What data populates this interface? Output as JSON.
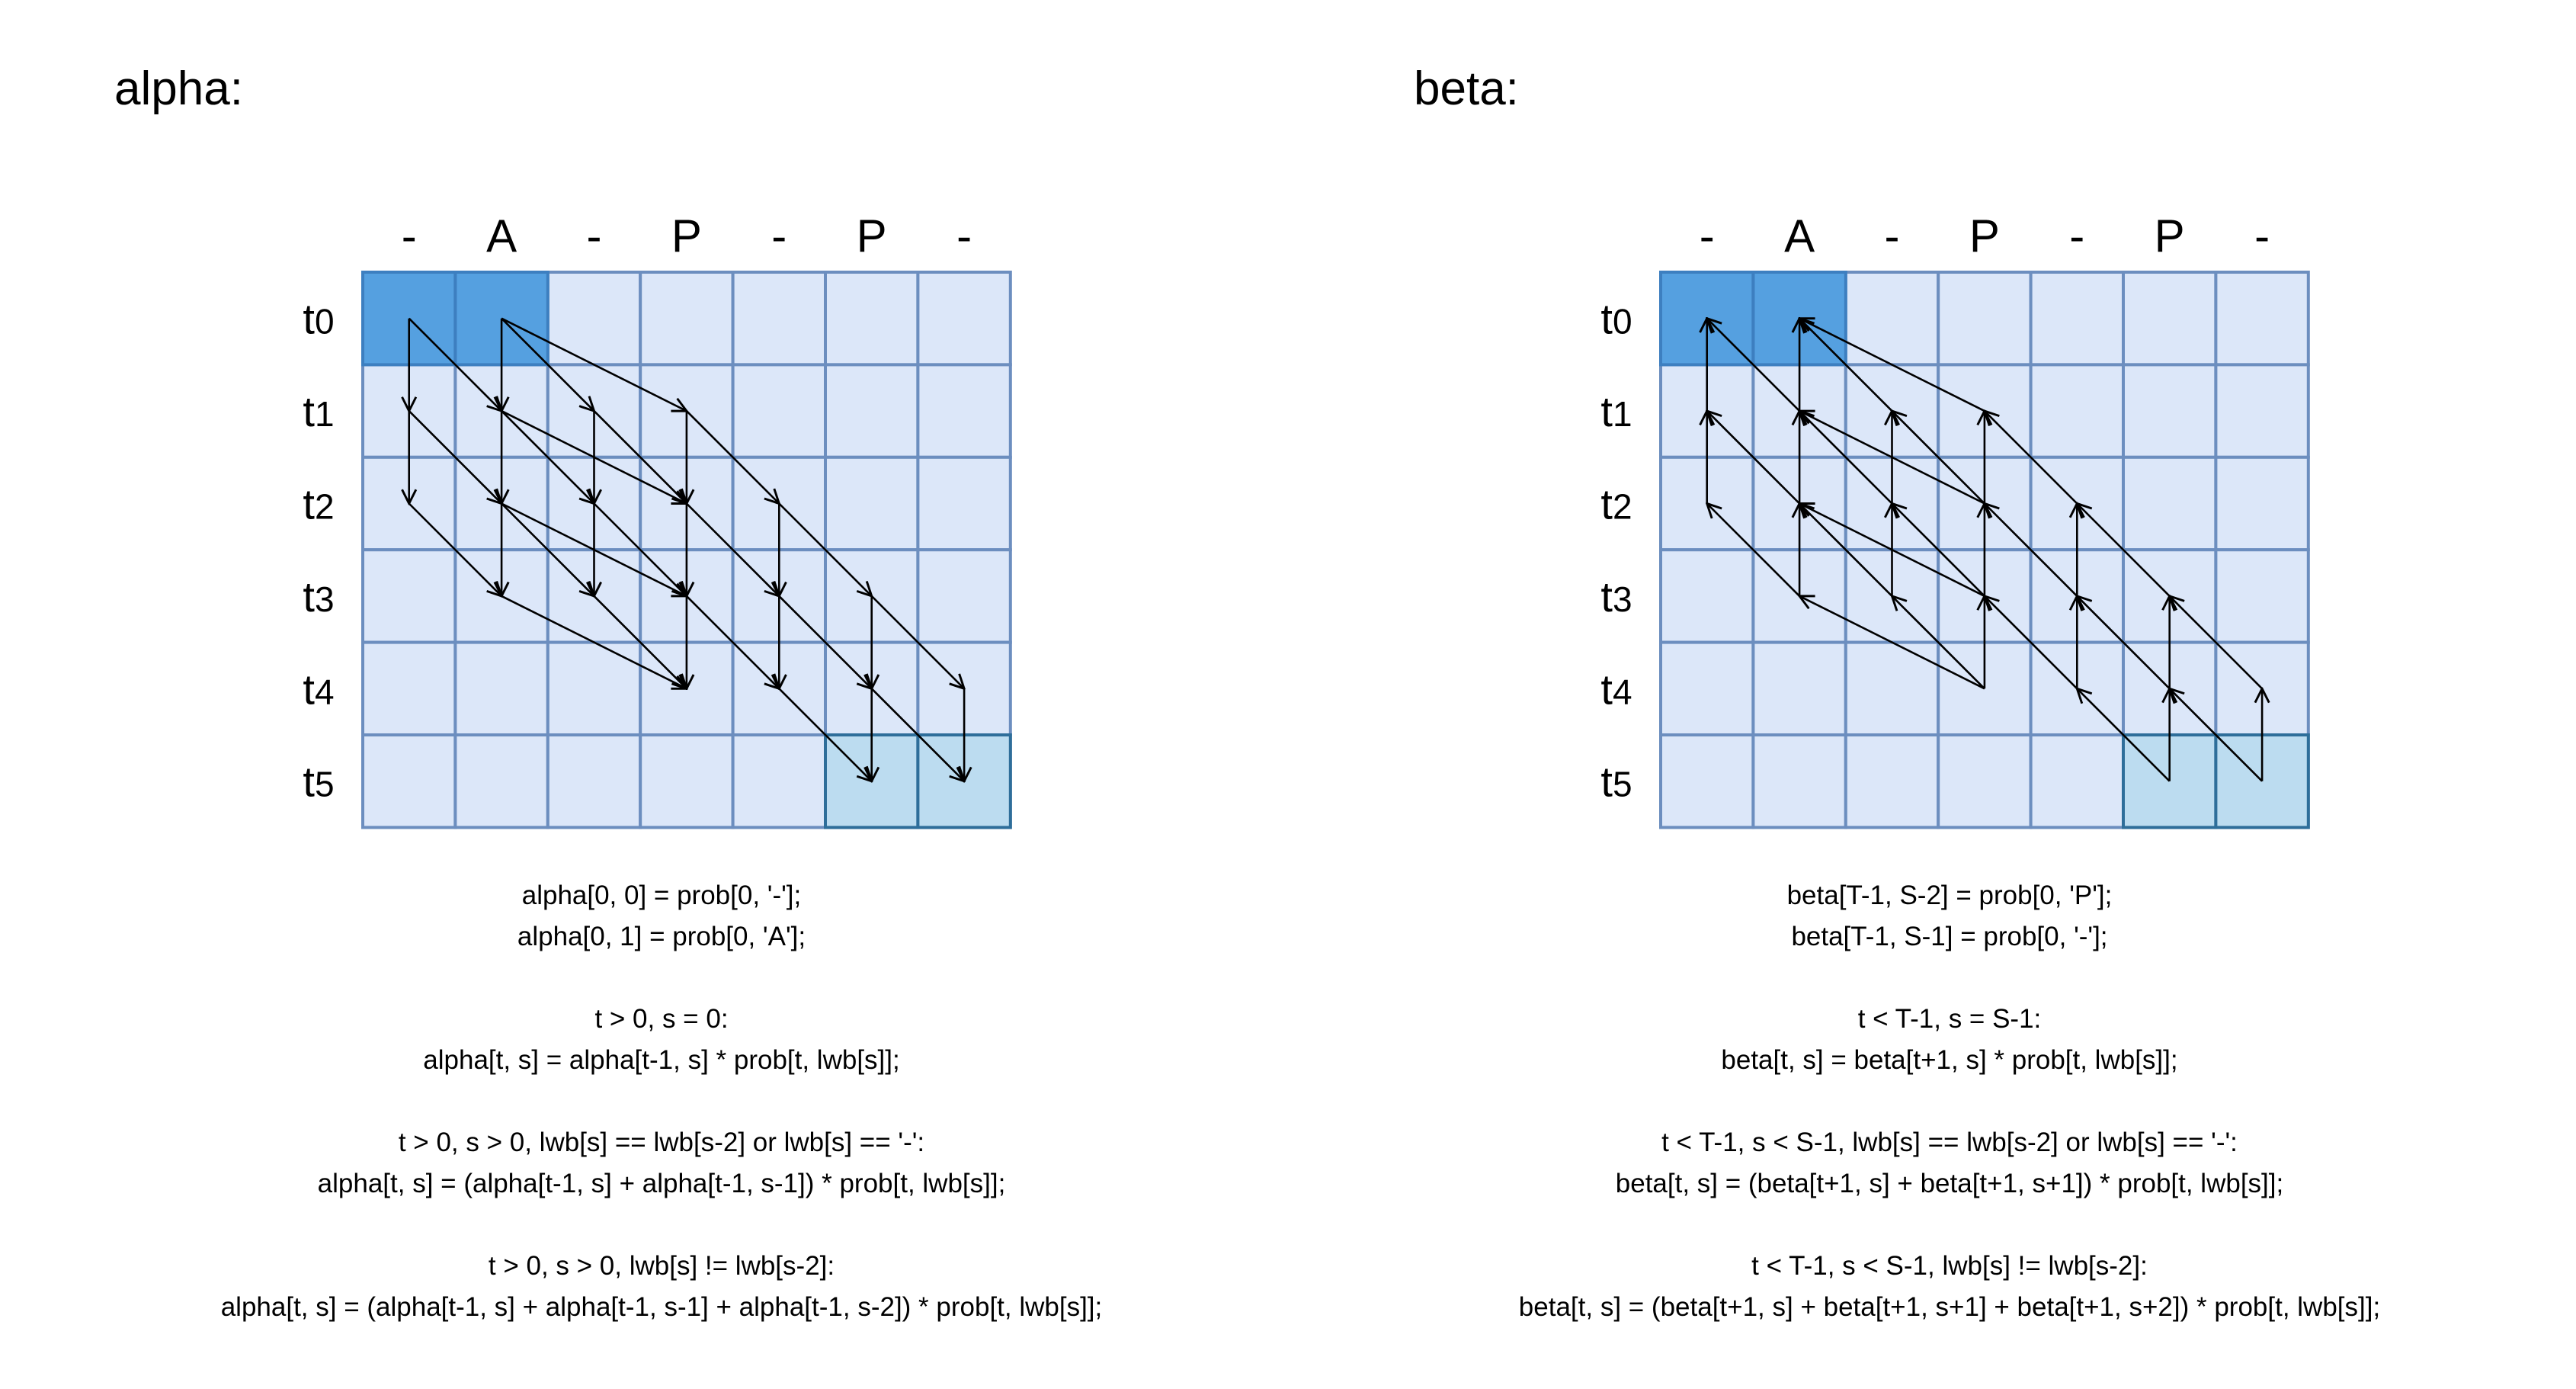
{
  "colors": {
    "cell_fill": "#dce7f9",
    "cell_border": "#6c8ebf",
    "start_fill": "#55a0e0",
    "start_border": "#3d7fc0",
    "end_fill": "#bcdcf0",
    "end_border": "#2e6e9a",
    "arrow": "#000000"
  },
  "alpha": {
    "title": "alpha:",
    "columns": [
      "-",
      "A",
      "-",
      "P",
      "-",
      "P",
      "-"
    ],
    "rows": [
      {
        "base": "t",
        "sub": "0"
      },
      {
        "base": "t",
        "sub": "1"
      },
      {
        "base": "t",
        "sub": "2"
      },
      {
        "base": "t",
        "sub": "3"
      },
      {
        "base": "t",
        "sub": "4"
      },
      {
        "base": "t",
        "sub": "5"
      }
    ],
    "formulas": [
      "alpha[0, 0] = prob[0, '-'];",
      "alpha[0, 1] = prob[0, 'A'];",
      "",
      "t > 0, s = 0:",
      "alpha[t, s] = alpha[t-1, s] * prob[t, lwb[s]];",
      "",
      "t > 0, s > 0, lwb[s] == lwb[s-2] or lwb[s] == '-':",
      "alpha[t, s] = (alpha[t-1, s] + alpha[t-1, s-1]) * prob[t, lwb[s]];",
      "",
      "t > 0, s > 0, lwb[s] != lwb[s-2]:",
      "alpha[t, s] = (alpha[t-1, s] + alpha[t-1, s-1] + alpha[t-1, s-2]) * prob[t, lwb[s]];"
    ]
  },
  "beta": {
    "title": "beta:",
    "columns": [
      "-",
      "A",
      "-",
      "P",
      "-",
      "P",
      "-"
    ],
    "rows": [
      {
        "base": "t",
        "sub": "0"
      },
      {
        "base": "t",
        "sub": "1"
      },
      {
        "base": "t",
        "sub": "2"
      },
      {
        "base": "t",
        "sub": "3"
      },
      {
        "base": "t",
        "sub": "4"
      },
      {
        "base": "t",
        "sub": "5"
      }
    ],
    "formulas": [
      "beta[T-1, S-2] = prob[0, 'P'];",
      "beta[T-1, S-1] = prob[0, '-'];",
      "",
      "t < T-1, s = S-1:",
      "beta[t, s] = beta[t+1, s] * prob[t, lwb[s]];",
      "",
      "t < T-1, s < S-1, lwb[s] == lwb[s-2] or lwb[s] == '-':",
      "beta[t, s] = (beta[t+1, s] + beta[t+1, s+1]) * prob[t, lwb[s]];",
      "",
      "t < T-1, s < S-1, lwb[s] != lwb[s-2]:",
      "beta[t, s] = (beta[t+1, s] + beta[t+1, s+1] + beta[t+1, s+2]) * prob[t, lwb[s]];"
    ]
  }
}
